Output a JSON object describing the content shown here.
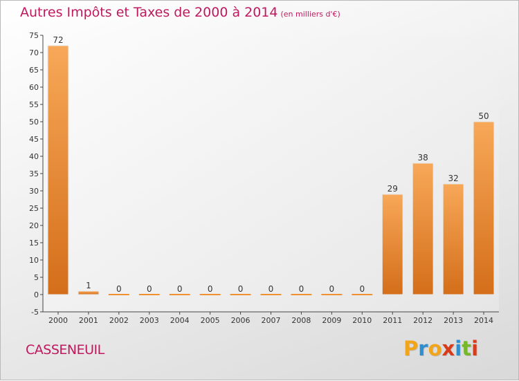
{
  "title": "Autres Impôts et Taxes de 2000 à 2014",
  "unit": "(en milliers d'€)",
  "commune": "CASSENEUIL",
  "logo": {
    "letters": [
      "P",
      "r",
      "o",
      "x",
      "i",
      "t",
      "i"
    ],
    "colors": [
      "#f1a51c",
      "#2e8fd0",
      "#f1a51c",
      "#d83b1a",
      "#2e8fd0",
      "#76b82a",
      "#d83b1a"
    ]
  },
  "chart_data": {
    "type": "bar",
    "categories": [
      "2000",
      "2001",
      "2002",
      "2003",
      "2004",
      "2005",
      "2006",
      "2007",
      "2008",
      "2009",
      "2010",
      "2011",
      "2012",
      "2013",
      "2014"
    ],
    "values": [
      72,
      1,
      0,
      0,
      0,
      0,
      0,
      0,
      0,
      0,
      0,
      29,
      38,
      32,
      50
    ],
    "ylim": [
      -5,
      75
    ],
    "yticks": [
      -5,
      0,
      5,
      10,
      15,
      20,
      25,
      30,
      35,
      40,
      45,
      50,
      55,
      60,
      65,
      70,
      75
    ],
    "grid": false,
    "bar_color": "#f0902f"
  }
}
